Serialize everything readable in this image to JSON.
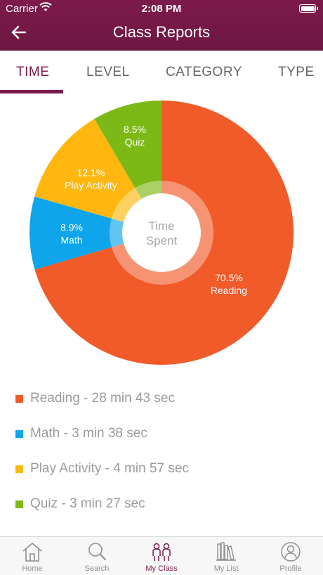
{
  "status_bar": {
    "carrier": "Carrier",
    "time": "2:08 PM"
  },
  "header": {
    "title": "Class Reports"
  },
  "tabs": [
    {
      "label": "TIME",
      "active": true
    },
    {
      "label": "LEVEL",
      "active": false
    },
    {
      "label": "CATEGORY",
      "active": false
    },
    {
      "label": "TYPE",
      "active": false
    }
  ],
  "chart_data": {
    "type": "pie",
    "center_label": [
      "Time",
      "Spent"
    ],
    "slices": [
      {
        "name": "Reading",
        "percent": 70.5,
        "percent_label": "70.5%",
        "color": "#f15a29"
      },
      {
        "name": "Math",
        "percent": 8.9,
        "percent_label": "8.9%",
        "color": "#0ea5ea"
      },
      {
        "name": "Play Activity",
        "percent": 12.1,
        "percent_label": "12.1%",
        "color": "#ffb70f"
      },
      {
        "name": "Quiz",
        "percent": 8.5,
        "percent_label": "8.5%",
        "color": "#7cb916"
      }
    ]
  },
  "legend": [
    {
      "text": "Reading - 28 min 43 sec",
      "color": "#f15a29"
    },
    {
      "text": "Math - 3 min 38 sec",
      "color": "#0ea5ea"
    },
    {
      "text": "Play Activity - 4 min 57 sec",
      "color": "#ffb70f"
    },
    {
      "text": "Quiz - 3 min 27 sec",
      "color": "#7cb916"
    }
  ],
  "tabbar": [
    {
      "label": "Home",
      "icon": "home-icon",
      "active": false
    },
    {
      "label": "Search",
      "icon": "search-icon",
      "active": false
    },
    {
      "label": "My Class",
      "icon": "my-class-icon",
      "active": true
    },
    {
      "label": "My List",
      "icon": "my-list-icon",
      "active": false
    },
    {
      "label": "Profile",
      "icon": "profile-icon",
      "active": false
    }
  ],
  "colors": {
    "brand": "#7c1a4b",
    "muted_text": "#9b9b9b"
  }
}
